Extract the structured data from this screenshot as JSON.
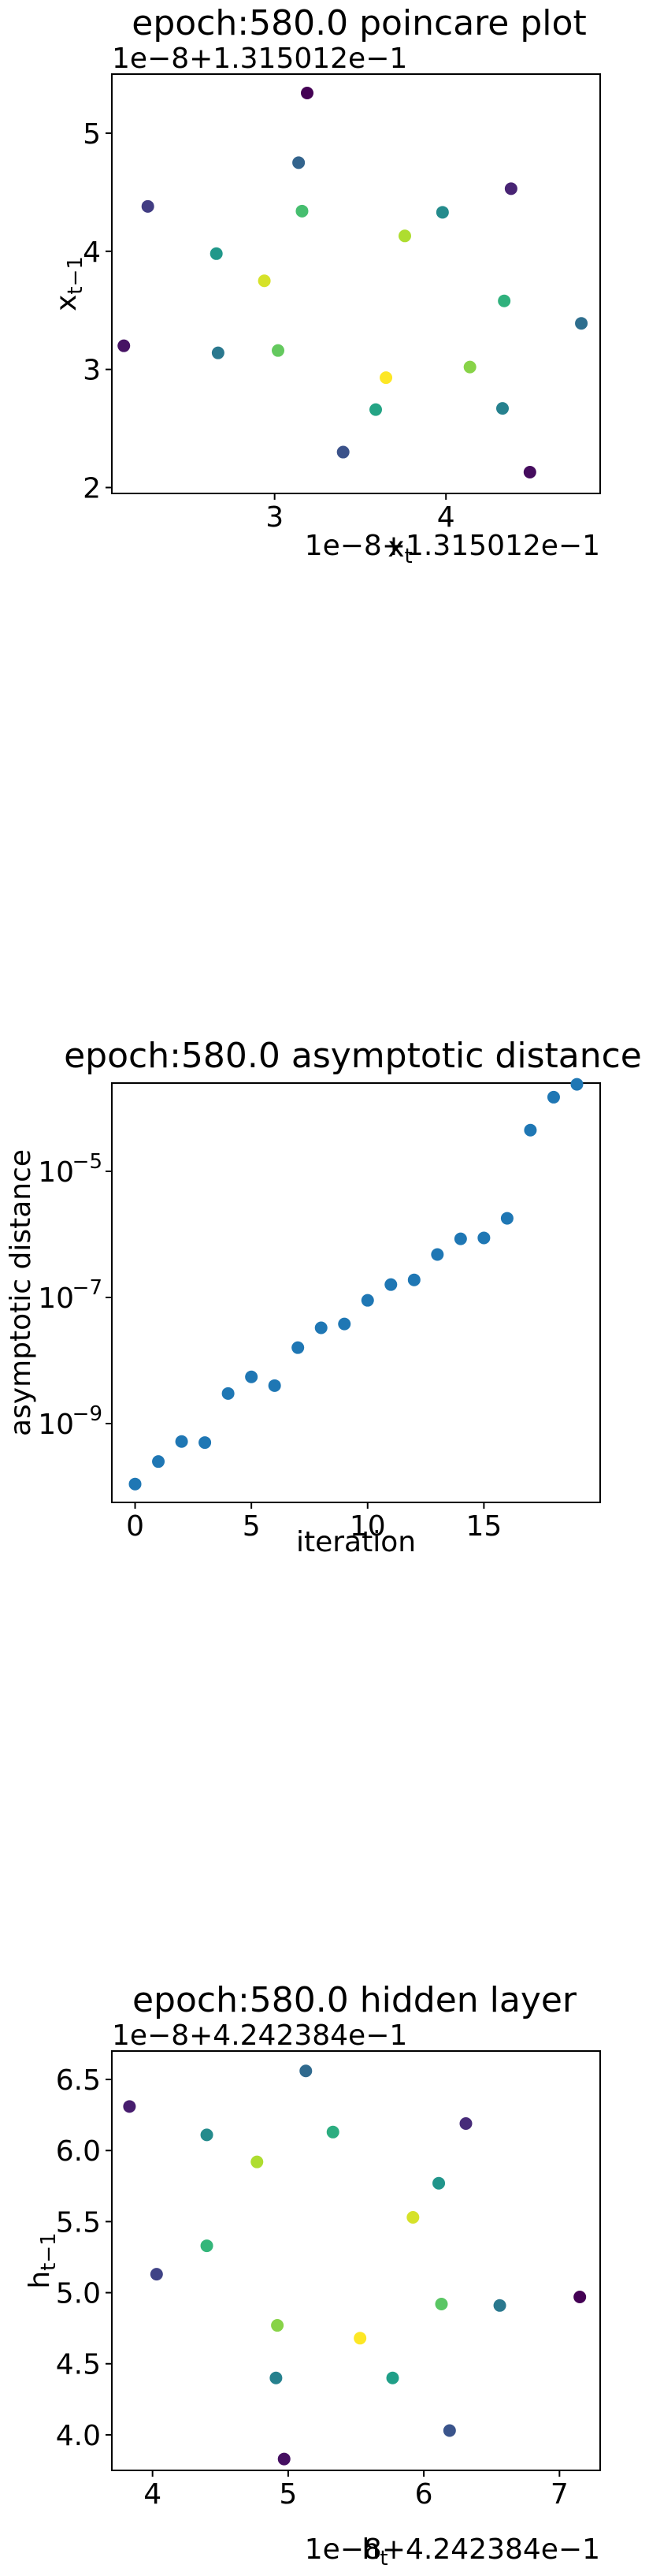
{
  "chart_data": [
    {
      "type": "scatter",
      "title": "epoch:580.0 poincare plot",
      "xlabel": "x_t",
      "ylabel": "x_{t−1}",
      "x_offset_label": "1e−8+1.315012e−1",
      "y_offset_label": "1e−8+1.315012e−1",
      "xlim": [
        2.05,
        4.9
      ],
      "ylim": [
        1.95,
        5.5
      ],
      "x_ticks": [
        3,
        4
      ],
      "x_tick_labels": [
        "3",
        "4"
      ],
      "y_ticks": [
        2,
        3,
        4,
        5
      ],
      "y_tick_labels": [
        "2",
        "3",
        "4",
        "5"
      ],
      "colormap": "viridis",
      "points": [
        {
          "x": 3.19,
          "y": 5.34,
          "c": 0.0
        },
        {
          "x": 4.49,
          "y": 2.13,
          "c": 0.03
        },
        {
          "x": 2.12,
          "y": 3.2,
          "c": 0.05
        },
        {
          "x": 4.38,
          "y": 4.53,
          "c": 0.1
        },
        {
          "x": 2.26,
          "y": 4.38,
          "c": 0.18
        },
        {
          "x": 3.4,
          "y": 2.3,
          "c": 0.25
        },
        {
          "x": 3.14,
          "y": 4.75,
          "c": 0.32
        },
        {
          "x": 4.79,
          "y": 3.39,
          "c": 0.36
        },
        {
          "x": 2.67,
          "y": 3.14,
          "c": 0.4
        },
        {
          "x": 4.33,
          "y": 2.67,
          "c": 0.44
        },
        {
          "x": 3.98,
          "y": 4.33,
          "c": 0.48
        },
        {
          "x": 2.66,
          "y": 3.98,
          "c": 0.53
        },
        {
          "x": 3.59,
          "y": 2.66,
          "c": 0.58
        },
        {
          "x": 4.34,
          "y": 3.58,
          "c": 0.64
        },
        {
          "x": 3.16,
          "y": 4.34,
          "c": 0.7
        },
        {
          "x": 3.02,
          "y": 3.16,
          "c": 0.76
        },
        {
          "x": 4.14,
          "y": 3.02,
          "c": 0.82
        },
        {
          "x": 3.76,
          "y": 4.13,
          "c": 0.88
        },
        {
          "x": 2.94,
          "y": 3.75,
          "c": 0.94
        },
        {
          "x": 3.65,
          "y": 2.93,
          "c": 1.0
        }
      ]
    },
    {
      "type": "scatter",
      "title": "epoch:580.0 asymptotic distance",
      "xlabel": "iteration",
      "ylabel": "asymptotic distance",
      "yscale": "log",
      "xlim": [
        -1.0,
        20.0
      ],
      "ylim_log10": [
        -10.25,
        -3.6
      ],
      "x_ticks": [
        0,
        5,
        10,
        15
      ],
      "x_tick_labels": [
        "0",
        "5",
        "10",
        "15"
      ],
      "y_ticks_log10": [
        -9,
        -7,
        -5
      ],
      "y_tick_labels": [
        "10",
        "10",
        "10"
      ],
      "y_tick_exponents": [
        "−9",
        "−7",
        "−5"
      ],
      "color": "#1f77b4",
      "x": [
        0,
        1,
        2,
        3,
        4,
        5,
        6,
        7,
        8,
        9,
        10,
        11,
        12,
        13,
        14,
        15,
        16,
        17,
        18,
        19
      ],
      "y": [
        1.1e-10,
        2.5e-10,
        5.2e-10,
        5e-10,
        3e-09,
        5.5e-09,
        4e-09,
        1.6e-08,
        3.3e-08,
        3.8e-08,
        9e-08,
        1.6e-07,
        1.9e-07,
        4.8e-07,
        8.5e-07,
        8.8e-07,
        1.8e-06,
        4.5e-05,
        0.00015,
        0.00024
      ]
    },
    {
      "type": "scatter",
      "title": "epoch:580.0 hidden layer",
      "xlabel": "h_t",
      "ylabel": "h_{t−1}",
      "x_offset_label": "1e−8+4.242384e−1",
      "y_offset_label": "1e−8+4.242384e−1",
      "xlim": [
        3.7,
        7.3
      ],
      "ylim": [
        3.75,
        6.7
      ],
      "x_ticks": [
        4,
        5,
        6,
        7
      ],
      "x_tick_labels": [
        "4",
        "5",
        "6",
        "7"
      ],
      "y_ticks": [
        4.0,
        4.5,
        5.0,
        5.5,
        6.0,
        6.5
      ],
      "y_tick_labels": [
        "4.0",
        "4.5",
        "5.0",
        "5.5",
        "6.0",
        "6.5"
      ],
      "colormap": "viridis",
      "points": [
        {
          "x": 7.15,
          "y": 4.97,
          "c": 0.0
        },
        {
          "x": 4.97,
          "y": 3.83,
          "c": 0.04
        },
        {
          "x": 3.83,
          "y": 6.31,
          "c": 0.08
        },
        {
          "x": 6.31,
          "y": 6.19,
          "c": 0.12
        },
        {
          "x": 4.03,
          "y": 5.13,
          "c": 0.2
        },
        {
          "x": 6.19,
          "y": 4.03,
          "c": 0.26
        },
        {
          "x": 5.13,
          "y": 6.56,
          "c": 0.34
        },
        {
          "x": 6.56,
          "y": 4.91,
          "c": 0.4
        },
        {
          "x": 4.91,
          "y": 4.4,
          "c": 0.44
        },
        {
          "x": 4.4,
          "y": 6.11,
          "c": 0.48
        },
        {
          "x": 6.11,
          "y": 5.77,
          "c": 0.52
        },
        {
          "x": 5.77,
          "y": 4.4,
          "c": 0.56
        },
        {
          "x": 5.33,
          "y": 6.13,
          "c": 0.62
        },
        {
          "x": 4.4,
          "y": 5.33,
          "c": 0.66
        },
        {
          "x": 6.13,
          "y": 4.92,
          "c": 0.74
        },
        {
          "x": 4.92,
          "y": 4.77,
          "c": 0.82
        },
        {
          "x": 4.77,
          "y": 5.92,
          "c": 0.88
        },
        {
          "x": 5.92,
          "y": 5.53,
          "c": 0.94
        },
        {
          "x": 5.53,
          "y": 4.68,
          "c": 1.0
        }
      ]
    }
  ]
}
